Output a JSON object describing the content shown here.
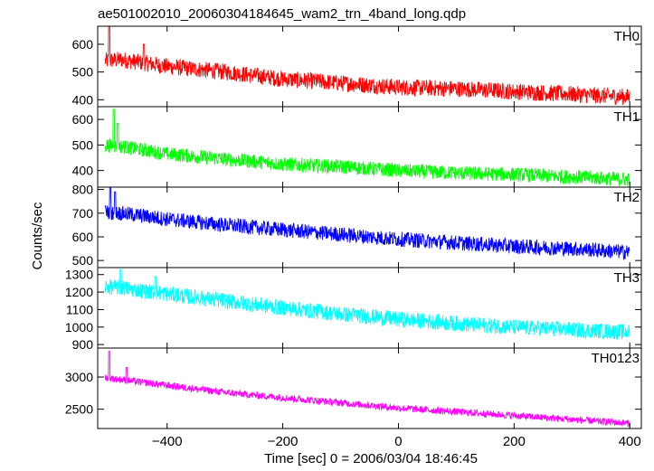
{
  "title": "ae501002010_20060304184645_wam2_trn_4band_long.qdp",
  "ylabel": "Counts/sec",
  "xlabel": "Time [sec] 0 = 2006/03/04 18:46:45",
  "chart_data": {
    "type": "line",
    "shared_x_axis": {
      "range": [
        -520,
        420
      ],
      "ticks": [
        -400,
        -200,
        0,
        200,
        400
      ],
      "tick_labels": [
        "−400",
        "−200",
        "0",
        "200",
        "400"
      ],
      "data_range": [
        -507,
        400
      ]
    },
    "panels": [
      {
        "name": "TH0",
        "color": "#ff0000",
        "ylim": [
          375,
          665
        ],
        "yticks": [
          400,
          500,
          600
        ],
        "trend": [
          [
            -507,
            540
          ],
          [
            -480,
            545
          ],
          [
            -400,
            520
          ],
          [
            -300,
            500
          ],
          [
            -200,
            475
          ],
          [
            -100,
            460
          ],
          [
            0,
            445
          ],
          [
            100,
            440
          ],
          [
            200,
            430
          ],
          [
            300,
            420
          ],
          [
            400,
            410
          ]
        ],
        "noise_amplitude": 30,
        "spikes": [
          [
            -500,
            665
          ],
          [
            -440,
            600
          ]
        ]
      },
      {
        "name": "TH1",
        "color": "#00ff00",
        "ylim": [
          335,
          650
        ],
        "yticks": [
          400,
          500,
          600
        ],
        "trend": [
          [
            -507,
            500
          ],
          [
            -480,
            495
          ],
          [
            -400,
            465
          ],
          [
            -300,
            445
          ],
          [
            -200,
            425
          ],
          [
            -100,
            415
          ],
          [
            0,
            400
          ],
          [
            100,
            390
          ],
          [
            200,
            385
          ],
          [
            300,
            375
          ],
          [
            400,
            365
          ]
        ],
        "noise_amplitude": 28,
        "spikes": [
          [
            -492,
            640
          ],
          [
            -485,
            585
          ]
        ]
      },
      {
        "name": "TH2",
        "color": "#0000ff",
        "ylim": [
          470,
          810
        ],
        "yticks": [
          500,
          600,
          700,
          800
        ],
        "trend": [
          [
            -507,
            705
          ],
          [
            -480,
            700
          ],
          [
            -400,
            675
          ],
          [
            -300,
            650
          ],
          [
            -200,
            630
          ],
          [
            -100,
            610
          ],
          [
            0,
            590
          ],
          [
            100,
            575
          ],
          [
            200,
            560
          ],
          [
            300,
            550
          ],
          [
            400,
            535
          ]
        ],
        "noise_amplitude": 32,
        "spikes": [
          [
            -498,
            810
          ],
          [
            -490,
            790
          ]
        ]
      },
      {
        "name": "TH3",
        "color": "#00ffff",
        "ylim": [
          880,
          1340
        ],
        "yticks": [
          900,
          1000,
          1100,
          1200,
          1300
        ],
        "trend": [
          [
            -507,
            1230
          ],
          [
            -480,
            1225
          ],
          [
            -400,
            1190
          ],
          [
            -300,
            1150
          ],
          [
            -200,
            1110
          ],
          [
            -100,
            1075
          ],
          [
            0,
            1045
          ],
          [
            100,
            1020
          ],
          [
            200,
            1000
          ],
          [
            300,
            985
          ],
          [
            400,
            970
          ]
        ],
        "noise_amplitude": 45,
        "spikes": [
          [
            -480,
            1330
          ],
          [
            -420,
            1290
          ]
        ]
      },
      {
        "name": "TH0123",
        "color": "#ff00ff",
        "ylim": [
          2200,
          3450
        ],
        "yticks": [
          2500,
          3000
        ],
        "trend": [
          [
            -507,
            2990
          ],
          [
            -480,
            2960
          ],
          [
            -400,
            2870
          ],
          [
            -300,
            2760
          ],
          [
            -200,
            2680
          ],
          [
            -100,
            2600
          ],
          [
            0,
            2520
          ],
          [
            100,
            2460
          ],
          [
            200,
            2400
          ],
          [
            300,
            2340
          ],
          [
            400,
            2280
          ]
        ],
        "noise_amplitude": 55,
        "spikes": [
          [
            -500,
            3400
          ],
          [
            -470,
            3150
          ]
        ]
      }
    ]
  }
}
